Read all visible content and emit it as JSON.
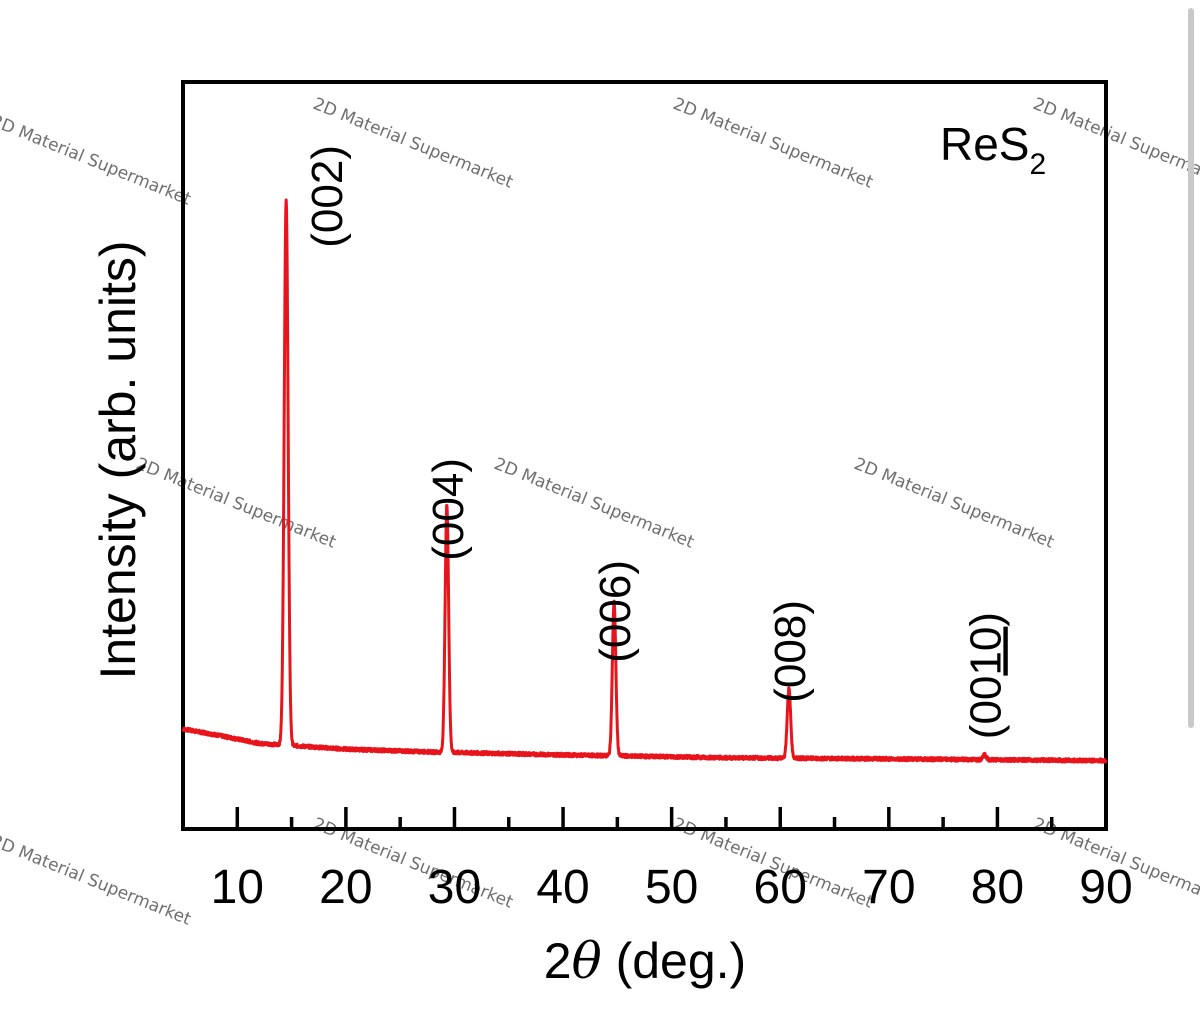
{
  "chart_data": {
    "type": "line",
    "title": "",
    "xlabel_prefix": "2",
    "xlabel_symbol": "θ",
    "xlabel_suffix": "(deg.)",
    "ylabel": "Intensity (arb. units)",
    "xlim": [
      5,
      90
    ],
    "xticks": [
      10,
      20,
      30,
      40,
      50,
      60,
      70,
      80,
      90
    ],
    "grid": false,
    "legend": "none",
    "line_color": "#e8141c",
    "sample_label": {
      "base": "ReS",
      "sub": "2"
    },
    "baseline": [
      [
        5,
        0.08
      ],
      [
        8,
        0.07
      ],
      [
        12,
        0.055
      ],
      [
        20,
        0.045
      ],
      [
        28,
        0.04
      ],
      [
        40,
        0.035
      ],
      [
        55,
        0.03
      ],
      [
        70,
        0.028
      ],
      [
        90,
        0.025
      ]
    ],
    "peaks": [
      {
        "label": "(002)",
        "x": 14.5,
        "y": 1.0,
        "width": 0.18
      },
      {
        "label": "(004)",
        "x": 29.3,
        "y": 0.47,
        "width": 0.16
      },
      {
        "label": "(006)",
        "x": 44.7,
        "y": 0.3,
        "width": 0.16
      },
      {
        "label": "(008)",
        "x": 60.8,
        "y": 0.15,
        "width": 0.16
      },
      {
        "label": "(0010)",
        "x": 78.8,
        "y": 0.035,
        "width": 0.16,
        "underline_from": 2
      }
    ]
  },
  "watermark": {
    "text": "2D Material Supermarket"
  }
}
